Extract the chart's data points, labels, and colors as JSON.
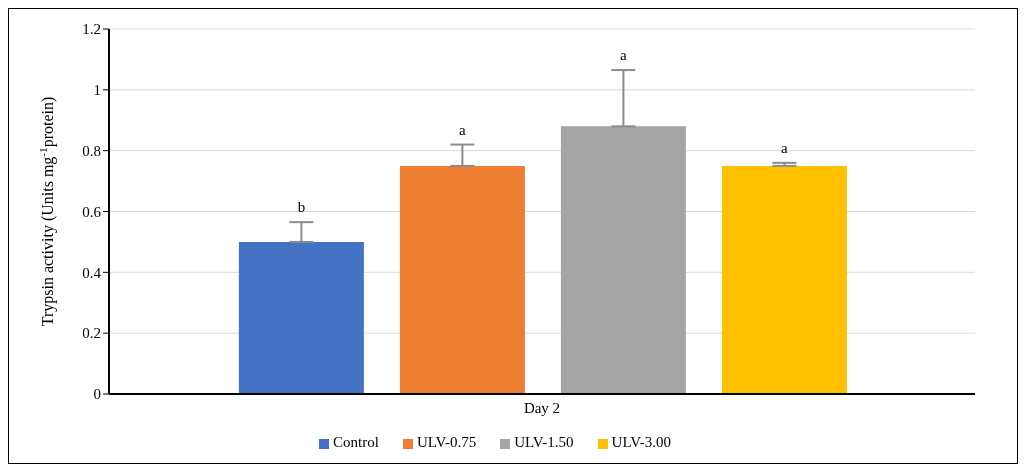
{
  "chart_data": {
    "type": "bar",
    "categories": [
      "Day 2"
    ],
    "ylabel": "Trypsin activity (Units mg$^{-1}$protein)",
    "ylim": [
      0,
      1.2
    ],
    "yticks": [
      0,
      0.2,
      0.4,
      0.6,
      0.8,
      1,
      1.2
    ],
    "grid": "y",
    "legend": "bottom",
    "series": [
      {
        "name": "Control",
        "color": "#4472c4",
        "values": [
          0.5
        ],
        "errors": [
          [
            0.5,
            0.565
          ]
        ]
      },
      {
        "name": "ULV-0.75",
        "color": "#ed7d31",
        "values": [
          0.75
        ],
        "errors": [
          [
            0.75,
            0.82
          ]
        ]
      },
      {
        "name": "ULV-1.50",
        "color": "#a5a5a5",
        "values": [
          0.88
        ],
        "errors": [
          [
            0.88,
            1.065
          ]
        ]
      },
      {
        "name": "ULV-3.00",
        "color": "#ffc000",
        "values": [
          0.75
        ],
        "errors": [
          [
            0.75,
            0.76
          ]
        ]
      }
    ],
    "annotations": [
      "b",
      "a",
      "a",
      "a"
    ]
  }
}
